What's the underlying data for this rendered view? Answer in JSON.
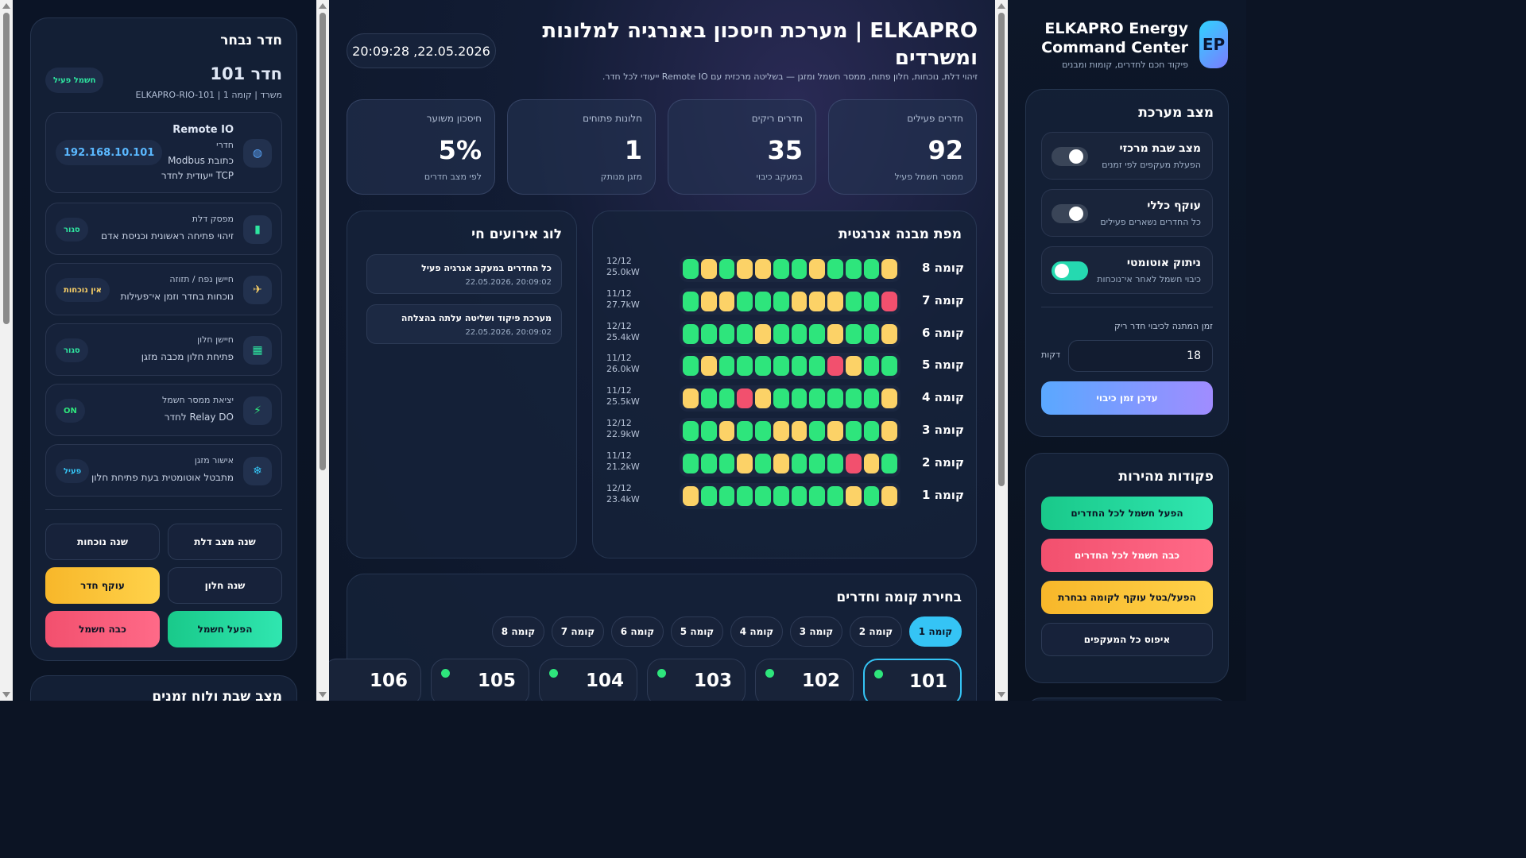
{
  "right": {
    "logo": "EP",
    "brand_line1": "ELKAPRO Energy",
    "brand_line2": "Command Center",
    "brand_sub": "פיקוד חכם לחדרים, קומות ומבנים",
    "system_title": "מצב מערכת",
    "toggles": [
      {
        "title": "מצב שבת מרכזי",
        "sub": "הפעלת מעקפים לפי זמנים",
        "on": false
      },
      {
        "title": "עוקף כללי",
        "sub": "כל החדרים נשארים פעילים",
        "on": false
      },
      {
        "title": "ניתוק אוטומטי",
        "sub": "כיבוי חשמל לאחר אי־נוכחות",
        "on": true
      }
    ],
    "wait_label": "זמן המתנה לכיבוי חדר ריק",
    "wait_value": "18",
    "wait_unit": "דקות",
    "update_btn": "עדכן זמן כיבוי",
    "quick_title": "פקודות מהירות",
    "quick": {
      "all_on": "הפעל חשמל לכל החדרים",
      "all_off": "כבה חשמל לכל החדרים",
      "bypass_floor": "הפעל/בטל עוקף לקומה נבחרת",
      "reset": "איפוס כל המעקפים"
    }
  },
  "middle": {
    "datetime": "20:09:28 ,22.05.2026",
    "title_line1": "ELKAPRO | מערכת חיסכון באנרגיה למלונות",
    "title_line2": "ומשרדים",
    "subtitle": "זיהוי דלת, נוכחות, חלון פתוח, ממסר חשמל ומזגן — בשליטה מרכזית עם Remote IO ייעודי לכל חדר.",
    "kpis": [
      {
        "label": "חדרים פעילים",
        "value": "92",
        "sub": "ממסר חשמל פעיל"
      },
      {
        "label": "חדרים ריקים",
        "value": "35",
        "sub": "במעקב כיבוי"
      },
      {
        "label": "חלונות פתוחים",
        "value": "1",
        "sub": "מזגן מנותק"
      },
      {
        "label": "חיסכון משוער",
        "value": "5%",
        "sub": "לפי מצב חדרים"
      }
    ],
    "map_title": "מפת מבנה אנרגטית",
    "log_title": "לוג אירועים חי",
    "floors": [
      {
        "name": "קומה 8",
        "count": "12/12",
        "power": "25.0kW",
        "cells": [
          "g",
          "y",
          "g",
          "y",
          "y",
          "g",
          "g",
          "y",
          "g",
          "g",
          "g",
          "y"
        ]
      },
      {
        "name": "קומה 7",
        "count": "11/12",
        "power": "27.7kW",
        "cells": [
          "g",
          "y",
          "y",
          "g",
          "g",
          "g",
          "y",
          "y",
          "y",
          "g",
          "g",
          "r"
        ]
      },
      {
        "name": "קומה 6",
        "count": "12/12",
        "power": "25.4kW",
        "cells": [
          "g",
          "g",
          "g",
          "g",
          "y",
          "g",
          "g",
          "g",
          "y",
          "g",
          "g",
          "y"
        ]
      },
      {
        "name": "קומה 5",
        "count": "11/12",
        "power": "26.0kW",
        "cells": [
          "g",
          "y",
          "g",
          "g",
          "g",
          "g",
          "g",
          "g",
          "r",
          "y",
          "g",
          "g"
        ]
      },
      {
        "name": "קומה 4",
        "count": "11/12",
        "power": "25.5kW",
        "cells": [
          "y",
          "g",
          "g",
          "r",
          "y",
          "g",
          "g",
          "g",
          "g",
          "g",
          "g",
          "y"
        ]
      },
      {
        "name": "קומה 3",
        "count": "12/12",
        "power": "22.9kW",
        "cells": [
          "g",
          "g",
          "y",
          "g",
          "g",
          "y",
          "y",
          "g",
          "y",
          "g",
          "g",
          "y"
        ]
      },
      {
        "name": "קומה 2",
        "count": "11/12",
        "power": "21.2kW",
        "cells": [
          "g",
          "g",
          "g",
          "y",
          "g",
          "y",
          "g",
          "g",
          "g",
          "r",
          "y",
          "g"
        ]
      },
      {
        "name": "קומה 1",
        "count": "12/12",
        "power": "23.4kW",
        "cells": [
          "y",
          "g",
          "g",
          "g",
          "g",
          "g",
          "g",
          "g",
          "g",
          "y",
          "g",
          "y"
        ]
      }
    ],
    "cell_colors": {
      "g": "#2ee57c",
      "y": "#fcd267",
      "r": "#f2506e"
    },
    "events": [
      {
        "text": "כל החדרים במעקב אנרגיה פעיל",
        "date": "20:09:02 ,22.05.2026"
      },
      {
        "text": "מערכת פיקוד ושליטה עלתה בהצלחה",
        "date": "20:09:02 ,22.05.2026"
      }
    ],
    "select_title": "בחירת קומה וחדרים",
    "floor_pills": [
      "קומה 1",
      "קומה 2",
      "קומה 3",
      "קומה 4",
      "קומה 5",
      "קומה 6",
      "קומה 7",
      "קומה 8"
    ],
    "rooms": [
      "101",
      "102",
      "103",
      "104",
      "105",
      "106"
    ]
  },
  "left": {
    "title": "חדר נבחר",
    "room_name": "חדר 101",
    "room_sub": "משרד | קומה 1 | ELKAPRO-RIO-101",
    "room_badge": "חשמל פעיל",
    "remote": {
      "title": "Remote IO",
      "line1": "חדרי",
      "line2": "כתובת Modbus",
      "line3": "TCP ייעודית לחדר",
      "ip": "192.168.10.101",
      "icon": "globe-icon"
    },
    "io": [
      {
        "name": "מפסק דלת",
        "sub": "זיהוי פתיחה ראשונית וכניסת אדם",
        "state": "סגור",
        "color": "#2ee5a0",
        "icon": "door-icon",
        "glyph": "▮"
      },
      {
        "name": "חיישן נפח / תזוזה",
        "sub": "נוכחות בחדר וזמן אי־פעילות",
        "state": "אין נוכחות",
        "color": "#fcd267",
        "icon": "motion-icon",
        "glyph": "✈"
      },
      {
        "name": "חיישן חלון",
        "sub": "פתיחת חלון מכבה מזגן",
        "state": "סגור",
        "color": "#2ee5a0",
        "icon": "window-icon",
        "glyph": "▦"
      },
      {
        "name": "יציאת ממסר חשמל",
        "sub": "Relay DO לחדר",
        "state": "ON",
        "color": "#2ee57c",
        "icon": "lightning-icon",
        "glyph": "⚡"
      },
      {
        "name": "אישור מזגן",
        "sub": "מתבטל אוטומטית בעת פתיחת חלון",
        "state": "פעיל",
        "color": "#35c4f5",
        "icon": "snowflake-icon",
        "glyph": "❄"
      }
    ],
    "buttons": {
      "door": "שנה מצב דלת",
      "presence": "שנה נוכחות",
      "window": "שנה חלון",
      "bypass": "עוקף חדר",
      "power_on": "הפעל חשמל",
      "power_off": "כבה חשמל"
    },
    "bottom_title": "מצב שבת ולוח זמנים"
  }
}
